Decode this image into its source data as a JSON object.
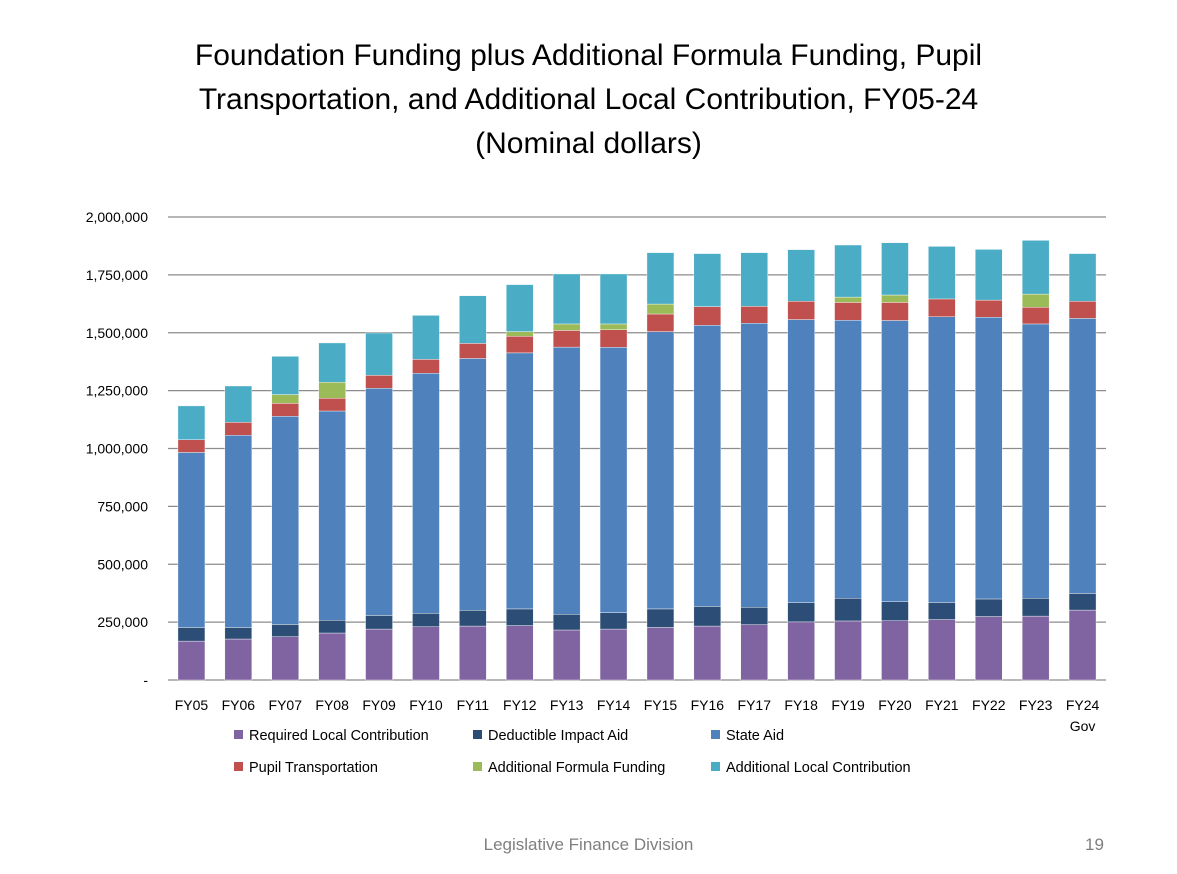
{
  "chart_data": {
    "type": "bar",
    "stacked": true,
    "title_lines": [
      "Foundation Funding plus Additional Formula Funding, Pupil",
      "Transportation, and Additional Local Contribution, FY05-24",
      "(Nominal dollars)"
    ],
    "xlabel": "",
    "ylabel": "",
    "ylim": [
      0,
      2000000
    ],
    "yticks": [
      0,
      250000,
      500000,
      750000,
      1000000,
      1250000,
      1500000,
      1750000,
      2000000
    ],
    "ytick_labels": [
      "-",
      "250,000",
      "500,000",
      "750,000",
      "1,000,000",
      "1,250,000",
      "1,500,000",
      "1,750,000",
      "2,000,000"
    ],
    "grid": true,
    "legend_position": "bottom",
    "categories": [
      "FY05",
      "FY06",
      "FY07",
      "FY08",
      "FY09",
      "FY10",
      "FY11",
      "FY12",
      "FY13",
      "FY14",
      "FY15",
      "FY16",
      "FY17",
      "FY18",
      "FY19",
      "FY20",
      "FY21",
      "FY22",
      "FY23",
      "FY24 Gov"
    ],
    "series": [
      {
        "name": "Required Local Contribution",
        "color": "#8064a2",
        "values": [
          168000,
          177000,
          187000,
          203000,
          220000,
          230000,
          233000,
          235000,
          216000,
          220000,
          227000,
          233000,
          239000,
          251000,
          255000,
          256000,
          261000,
          274000,
          276000,
          302000
        ]
      },
      {
        "name": "Deductible Impact Aid",
        "color": "#2c4d75",
        "values": [
          59000,
          50000,
          53000,
          55000,
          59000,
          58000,
          68000,
          72000,
          68000,
          71000,
          80000,
          85000,
          75000,
          83000,
          98000,
          82000,
          74000,
          76000,
          77000,
          72000
        ]
      },
      {
        "name": "State Aid",
        "color": "#4f81bd",
        "values": [
          756000,
          830000,
          899000,
          904000,
          981000,
          1037000,
          1088000,
          1106000,
          1154000,
          1146000,
          1198000,
          1214000,
          1227000,
          1223000,
          1201000,
          1215000,
          1234000,
          1217000,
          1185000,
          1188000
        ]
      },
      {
        "name": "Pupil Transportation",
        "color": "#c0504d",
        "values": [
          55000,
          56000,
          56000,
          55000,
          56000,
          60000,
          65000,
          72000,
          72000,
          76000,
          76000,
          81000,
          73000,
          79000,
          77000,
          78000,
          77000,
          74000,
          72000,
          74000
        ]
      },
      {
        "name": "Additional Formula Funding",
        "color": "#9bbb59",
        "values": [
          0,
          0,
          38000,
          69000,
          0,
          0,
          0,
          20000,
          28000,
          25000,
          43000,
          0,
          0,
          0,
          23000,
          32000,
          0,
          0,
          57000,
          0
        ]
      },
      {
        "name": "Additional Local Contribution",
        "color": "#4bacc6",
        "values": [
          146000,
          157000,
          165000,
          170000,
          183000,
          190000,
          206000,
          203000,
          216000,
          216000,
          222000,
          229000,
          232000,
          223000,
          225000,
          226000,
          227000,
          219000,
          232000,
          206000
        ]
      }
    ]
  },
  "footer": {
    "text": "Legislative Finance Division",
    "page_number": "19"
  }
}
